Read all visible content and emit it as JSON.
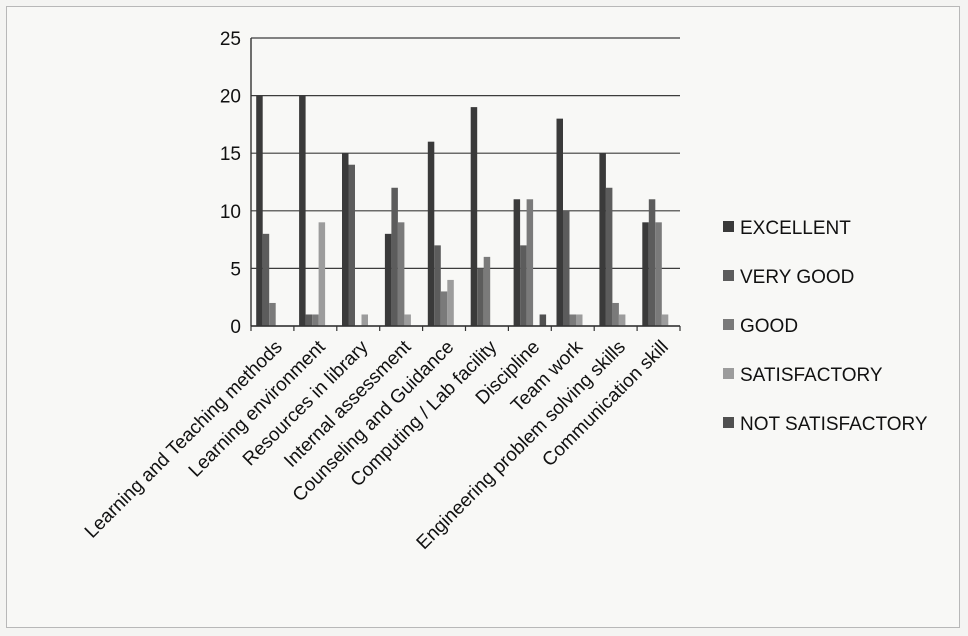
{
  "chart_data": {
    "type": "bar",
    "title": "",
    "xlabel": "",
    "ylabel": "",
    "ylim": [
      0,
      25
    ],
    "yticks": [
      0,
      5,
      10,
      15,
      20,
      25
    ],
    "grid": true,
    "legend_position": "right",
    "categories": [
      "Learning and Teaching methods",
      "Learning environment",
      "Resources in library",
      "Internal assessment",
      "Counseling and Guidance",
      "Computing / Lab facility",
      "Discipline",
      "Team work",
      "Engineering problem solving skills",
      "Communication skill"
    ],
    "series": [
      {
        "name": "EXCELLENT",
        "color": "#3a3a3a",
        "values": [
          20,
          20,
          15,
          8,
          16,
          19,
          11,
          18,
          15,
          9
        ]
      },
      {
        "name": "VERY GOOD",
        "color": "#5c5c5c",
        "values": [
          8,
          1,
          14,
          12,
          7,
          5,
          7,
          10,
          12,
          11
        ]
      },
      {
        "name": "GOOD",
        "color": "#7a7a7a",
        "values": [
          2,
          1,
          0,
          9,
          3,
          6,
          11,
          1,
          2,
          9
        ]
      },
      {
        "name": "SATISFACTORY",
        "color": "#9c9c9c",
        "values": [
          0,
          9,
          1,
          1,
          4,
          0,
          0,
          1,
          1,
          1
        ]
      },
      {
        "name": "NOT SATISFACTORY",
        "color": "#505050",
        "values": [
          0,
          0,
          0,
          0,
          0,
          0,
          1,
          0,
          0,
          0
        ]
      }
    ]
  }
}
